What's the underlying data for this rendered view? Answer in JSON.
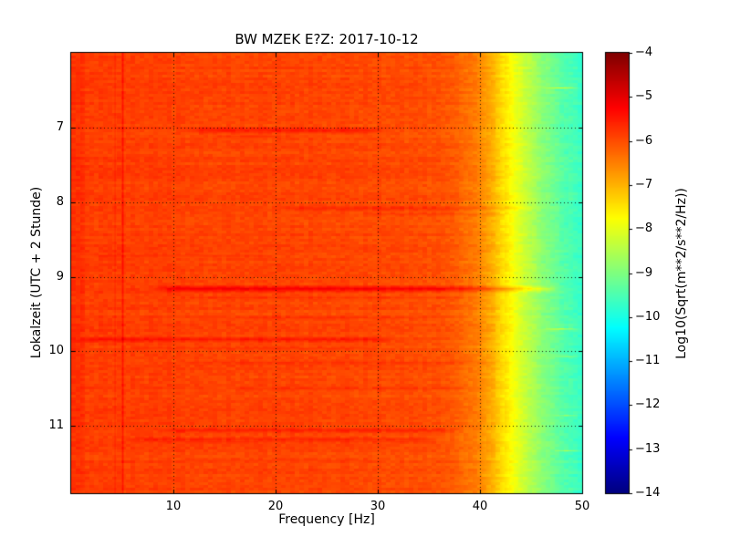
{
  "figure": {
    "background": "#ffffff",
    "spine_color": "#000000"
  },
  "chart_data": {
    "type": "heatmap",
    "subtype": "spectrogram",
    "title": "BW MZEK E?Z: 2017-10-12",
    "xlabel": "Frequency [Hz]",
    "ylabel": "Lokalzeit (UTC + 2 Stunde)",
    "colorbar_label": "Log10(Sqrt(m**2/s**2/Hz))",
    "colormap": "jet",
    "grid": true,
    "grid_style": "dotted",
    "xlim": [
      0,
      50
    ],
    "ylim_time": [
      6.0,
      11.9
    ],
    "xticks": [
      10,
      20,
      30,
      40,
      50
    ],
    "yticks": [
      7,
      8,
      9,
      10,
      11
    ],
    "colorbar_range": [
      -4,
      -14
    ],
    "colorbar_ticks": [
      -4,
      -5,
      -6,
      -7,
      -8,
      -9,
      -10,
      -11,
      -12,
      -13,
      -14
    ],
    "freq_profile_log10": [
      [
        0,
        -5.7
      ],
      [
        0.5,
        -5.78
      ],
      [
        2,
        -5.85
      ],
      [
        5,
        -5.85
      ],
      [
        10,
        -5.88
      ],
      [
        15,
        -5.9
      ],
      [
        20,
        -5.92
      ],
      [
        25,
        -5.92
      ],
      [
        30,
        -5.95
      ],
      [
        34,
        -6.0
      ],
      [
        36,
        -6.05
      ],
      [
        38,
        -6.2
      ],
      [
        40,
        -6.55
      ],
      [
        41,
        -6.9
      ],
      [
        42,
        -7.3
      ],
      [
        43,
        -7.75
      ],
      [
        44,
        -8.15
      ],
      [
        45,
        -8.5
      ],
      [
        46,
        -8.85
      ],
      [
        47,
        -9.1
      ],
      [
        48,
        -9.35
      ],
      [
        49,
        -9.55
      ],
      [
        50,
        -9.7
      ]
    ],
    "vertical_features": [
      {
        "freq": 5.05,
        "width": 0.16,
        "amp": 0.45
      },
      {
        "freq": 4.3,
        "width": 0.12,
        "amp": 0.2
      },
      {
        "freq": 0.7,
        "width": 0.8,
        "amp": 0.12
      }
    ],
    "events": [
      {
        "t": 6.35,
        "fmin": 1,
        "fmax": 4,
        "amp": 0.2,
        "dur": 0.03
      },
      {
        "t": 7.04,
        "fmin": 11,
        "fmax": 31,
        "amp": 0.5,
        "dur": 0.05
      },
      {
        "t": 7.12,
        "fmin": 13,
        "fmax": 22,
        "amp": 0.25,
        "dur": 0.03
      },
      {
        "t": 8.08,
        "fmin": 20,
        "fmax": 46,
        "amp": 0.28,
        "dur": 0.04
      },
      {
        "t": 8.16,
        "fmin": 28,
        "fmax": 44,
        "amp": 0.2,
        "dur": 0.03
      },
      {
        "t": 8.72,
        "fmin": 1,
        "fmax": 20,
        "amp": 0.18,
        "dur": 0.03
      },
      {
        "t": 9.16,
        "fmin": 8,
        "fmax": 48,
        "amp": 0.75,
        "dur": 0.055
      },
      {
        "t": 9.28,
        "fmin": 10,
        "fmax": 40,
        "amp": 0.22,
        "dur": 0.03
      },
      {
        "t": 9.55,
        "fmin": 15,
        "fmax": 35,
        "amp": 0.15,
        "dur": 0.03
      },
      {
        "t": 9.84,
        "fmin": 0,
        "fmax": 32,
        "amp": 0.42,
        "dur": 0.05
      },
      {
        "t": 9.95,
        "fmin": 5,
        "fmax": 30,
        "amp": 0.2,
        "dur": 0.03
      },
      {
        "t": 10.15,
        "fmin": 10,
        "fmax": 45,
        "amp": 0.2,
        "dur": 0.05
      },
      {
        "t": 10.5,
        "fmin": 15,
        "fmax": 40,
        "amp": 0.15,
        "dur": 0.04
      },
      {
        "t": 11.06,
        "fmin": 8,
        "fmax": 38,
        "amp": 0.4,
        "dur": 0.045
      },
      {
        "t": 11.18,
        "fmin": 5,
        "fmax": 36,
        "amp": 0.38,
        "dur": 0.045
      },
      {
        "t": 11.45,
        "fmin": 10,
        "fmax": 30,
        "amp": 0.15,
        "dur": 0.03
      },
      {
        "t": 6.47,
        "fmin": 46,
        "fmax": 50,
        "amp": 1.3,
        "dur": 0.015
      },
      {
        "t": 9.7,
        "fmin": 46,
        "fmax": 50,
        "amp": 1.3,
        "dur": 0.015
      },
      {
        "t": 10.07,
        "fmin": 47,
        "fmax": 50,
        "amp": 1.2,
        "dur": 0.012
      },
      {
        "t": 10.86,
        "fmin": 47,
        "fmax": 50,
        "amp": 1.2,
        "dur": 0.012
      },
      {
        "t": 11.33,
        "fmin": 47,
        "fmax": 50,
        "amp": 1.4,
        "dur": 0.012
      }
    ],
    "noise_log10": {
      "cell": 0.12,
      "row": 0.07,
      "col": 0.04
    }
  }
}
